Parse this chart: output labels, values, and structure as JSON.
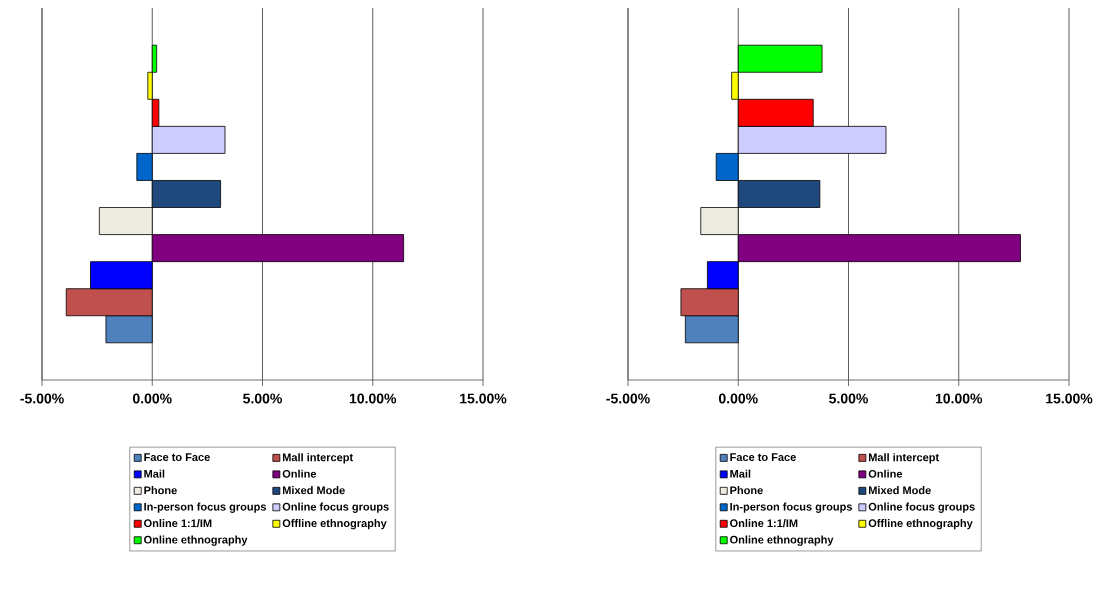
{
  "chart_data": [
    {
      "type": "bar",
      "orientation": "horizontal",
      "categories": [
        null
      ],
      "grid": "x",
      "legend": "bottom",
      "xlim": [
        -5,
        15
      ],
      "xticks": [
        {
          "value": -5,
          "label": "-5.00%"
        },
        {
          "value": 0,
          "label": "0.00%"
        },
        {
          "value": 5,
          "label": "5.00%"
        },
        {
          "value": 10,
          "label": "10.00%"
        },
        {
          "value": 15,
          "label": "15.00%"
        }
      ],
      "series": [
        {
          "name": "Face to Face",
          "color": "#4f81bd",
          "values": [
            -2.1
          ]
        },
        {
          "name": "Mall intercept",
          "color": "#c0504d",
          "values": [
            -3.9
          ]
        },
        {
          "name": "Mail",
          "color": "#0000ff",
          "values": [
            -2.8
          ]
        },
        {
          "name": "Online",
          "color": "#800080",
          "values": [
            11.4
          ]
        },
        {
          "name": "Phone",
          "color": "#eeece1",
          "values": [
            -2.4
          ]
        },
        {
          "name": "Mixed Mode",
          "color": "#1f497d",
          "values": [
            3.1
          ]
        },
        {
          "name": "In-person focus groups",
          "color": "#0066cc",
          "values": [
            -0.7
          ]
        },
        {
          "name": "Online focus groups",
          "color": "#ccccff",
          "values": [
            3.3
          ]
        },
        {
          "name": "Online 1:1/IM",
          "color": "#ff0000",
          "values": [
            0.3
          ]
        },
        {
          "name": "Offline ethnography",
          "color": "#ffff00",
          "values": [
            -0.2
          ]
        },
        {
          "name": "Online ethnography",
          "color": "#00ff00",
          "values": [
            0.2
          ]
        }
      ]
    },
    {
      "type": "bar",
      "orientation": "horizontal",
      "categories": [
        null
      ],
      "grid": "x",
      "legend": "bottom",
      "xlim": [
        -5,
        15
      ],
      "xticks": [
        {
          "value": -5,
          "label": "-5.00%"
        },
        {
          "value": 0,
          "label": "0.00%"
        },
        {
          "value": 5,
          "label": "5.00%"
        },
        {
          "value": 10,
          "label": "10.00%"
        },
        {
          "value": 15,
          "label": "15.00%"
        }
      ],
      "series": [
        {
          "name": "Face to Face",
          "color": "#4f81bd",
          "values": [
            -2.4
          ]
        },
        {
          "name": "Mall intercept",
          "color": "#c0504d",
          "values": [
            -2.6
          ]
        },
        {
          "name": "Mail",
          "color": "#0000ff",
          "values": [
            -1.4
          ]
        },
        {
          "name": "Online",
          "color": "#800080",
          "values": [
            12.8
          ]
        },
        {
          "name": "Phone",
          "color": "#eeece1",
          "values": [
            -1.7
          ]
        },
        {
          "name": "Mixed Mode",
          "color": "#1f497d",
          "values": [
            3.7
          ]
        },
        {
          "name": "In-person focus groups",
          "color": "#0066cc",
          "values": [
            -1.0
          ]
        },
        {
          "name": "Online focus groups",
          "color": "#ccccff",
          "values": [
            6.7
          ]
        },
        {
          "name": "Online 1:1/IM",
          "color": "#ff0000",
          "values": [
            3.4
          ]
        },
        {
          "name": "Offline ethnography",
          "color": "#ffff00",
          "values": [
            -0.3
          ]
        },
        {
          "name": "Online ethnography",
          "color": "#00ff00",
          "values": [
            3.8
          ]
        }
      ]
    }
  ]
}
